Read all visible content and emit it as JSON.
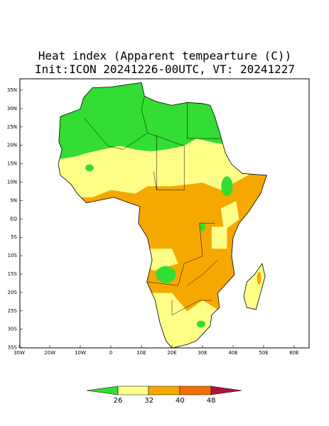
{
  "header": {
    "title": "Heat index (Apparent tempearture (C))",
    "subtitle": "Init:ICON 20241226-00UTC, VT: 20241227"
  },
  "map": {
    "lat_labels": [
      "35N",
      "30N",
      "25N",
      "20N",
      "15N",
      "10N",
      "5N",
      "EQ",
      "5S",
      "10S",
      "15S",
      "20S",
      "25S",
      "30S",
      "35S"
    ],
    "lon_labels": [
      "30W",
      "20W",
      "10W",
      "0",
      "10E",
      "20E",
      "30E",
      "40E",
      "50E",
      "60E"
    ]
  },
  "colorbar": {
    "labels": [
      "26",
      "32",
      "40",
      "48"
    ]
  }
}
